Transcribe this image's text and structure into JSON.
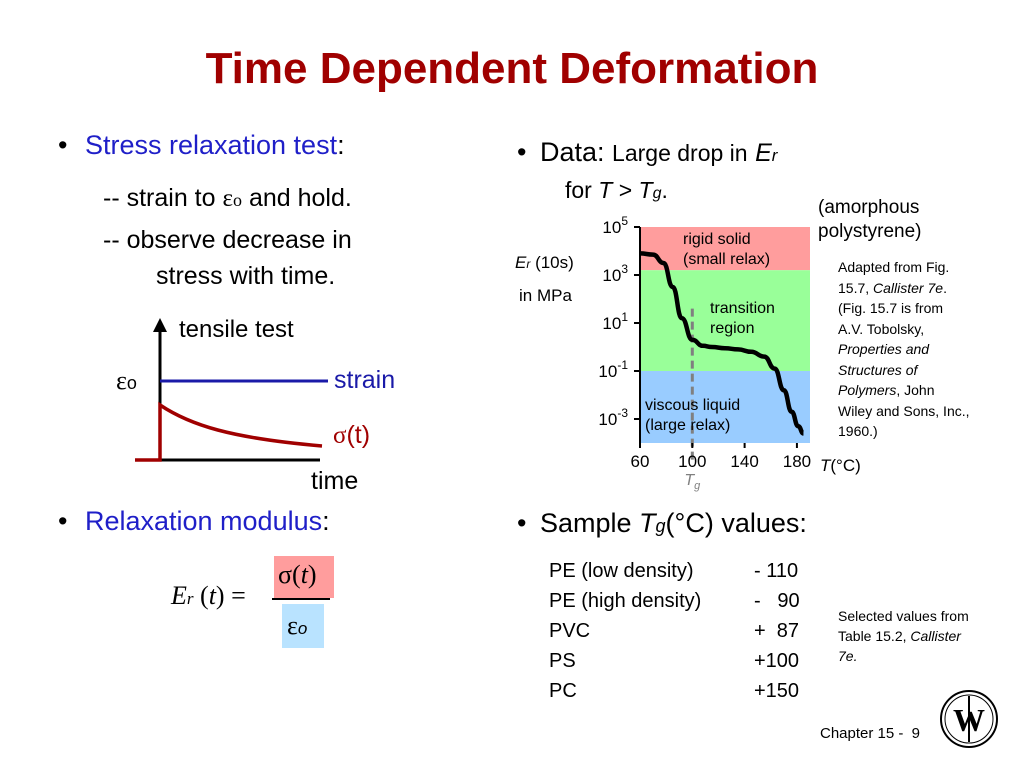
{
  "title": "Time Dependent Deformation",
  "left": {
    "bullet1_term": "Stress relaxation test",
    "bullet1_colon": ":",
    "line1_prefix": "-- strain to",
    "line1_suffix": "and hold.",
    "line2": "-- observe decrease in",
    "line3": "stress with time.",
    "schematic": {
      "title": "tensile test",
      "eps_label": "o",
      "strain_label": "strain",
      "sigma_label": "(t)",
      "time_label": "time",
      "colors": {
        "strain": "#1a1aa8",
        "stress": "#a00000"
      }
    },
    "bullet2_term": "Relaxation modulus",
    "bullet2_colon": ":",
    "formula": {
      "E": "E",
      "r": "r",
      "t": "t",
      "eq": "=",
      "sigma_t": "t",
      "eps_sub": "o"
    }
  },
  "right": {
    "data_label": "Data:",
    "data_desc_1": "Large drop in",
    "data_desc_E": "E",
    "data_desc_r": "r",
    "data_desc_2": "for",
    "data_desc_T": "T",
    "data_desc_gt": ">",
    "data_desc_Tg": "T",
    "data_desc_g": "g",
    "data_desc_dot": ".",
    "material_note_1": "(amorphous",
    "material_note_2": "polystyrene)",
    "citation": [
      "Adapted from Fig.",
      "15.7, Callister 7e.",
      "(Fig. 15.7 is from",
      "A.V. Tobolsky,",
      "Properties and",
      "Structures of",
      "Polymers, John",
      "Wiley and Sons, Inc.,",
      "1960.)"
    ],
    "sample_label_1": "Sample",
    "sample_label_T": "T",
    "sample_label_g": "g",
    "sample_label_2": "(°C) values:",
    "sample_table": [
      {
        "material": "PE (low density)",
        "value": "- 110"
      },
      {
        "material": "PE (high density)",
        "value": "-   90"
      },
      {
        "material": "PVC",
        "value": "+  87"
      },
      {
        "material": "PS",
        "value": "+100"
      },
      {
        "material": "PC",
        "value": "+150"
      }
    ],
    "table_source_1": "Selected values from",
    "table_source_2": "Table 15.2, Callister",
    "table_source_3": "7e."
  },
  "chart_data": {
    "type": "line",
    "ylabel": "Er (10s) in MPa",
    "xlabel": "T(°C)",
    "y_scale": "log",
    "x_ticks": [
      "60",
      "100",
      "140",
      "180"
    ],
    "y_ticks": [
      "10^5",
      "10^3",
      "10^1",
      "10^-1",
      "10^-3"
    ],
    "xlim": [
      60,
      190
    ],
    "ylim": [
      -4,
      5
    ],
    "regions": [
      {
        "name": "rigid solid (small relax)",
        "color": "#ff9d9d",
        "y_from": 3.2,
        "y_to": 5
      },
      {
        "name": "transition region",
        "color": "#99ff99",
        "y_from": -1.0,
        "y_to": 3.2
      },
      {
        "name": "viscous liquid (large relax)",
        "color": "#99ccff",
        "y_from": -4,
        "y_to": -1.0
      }
    ],
    "tg_label": "T",
    "tg_sub": "g",
    "tg_x": 100,
    "series": [
      {
        "x": [
          60,
          70,
          78,
          85,
          92,
          100,
          108,
          115,
          125,
          135,
          145,
          155,
          163,
          170,
          176,
          181,
          185
        ],
        "log_y": [
          3.9,
          3.85,
          3.5,
          2.5,
          1.2,
          0.3,
          0.05,
          0.0,
          -0.05,
          -0.1,
          -0.2,
          -0.4,
          -0.9,
          -1.8,
          -2.7,
          -3.3,
          -3.6
        ]
      }
    ]
  },
  "footer": {
    "chapter": "Chapter 15 -",
    "page": "9",
    "logo_text": "W"
  }
}
